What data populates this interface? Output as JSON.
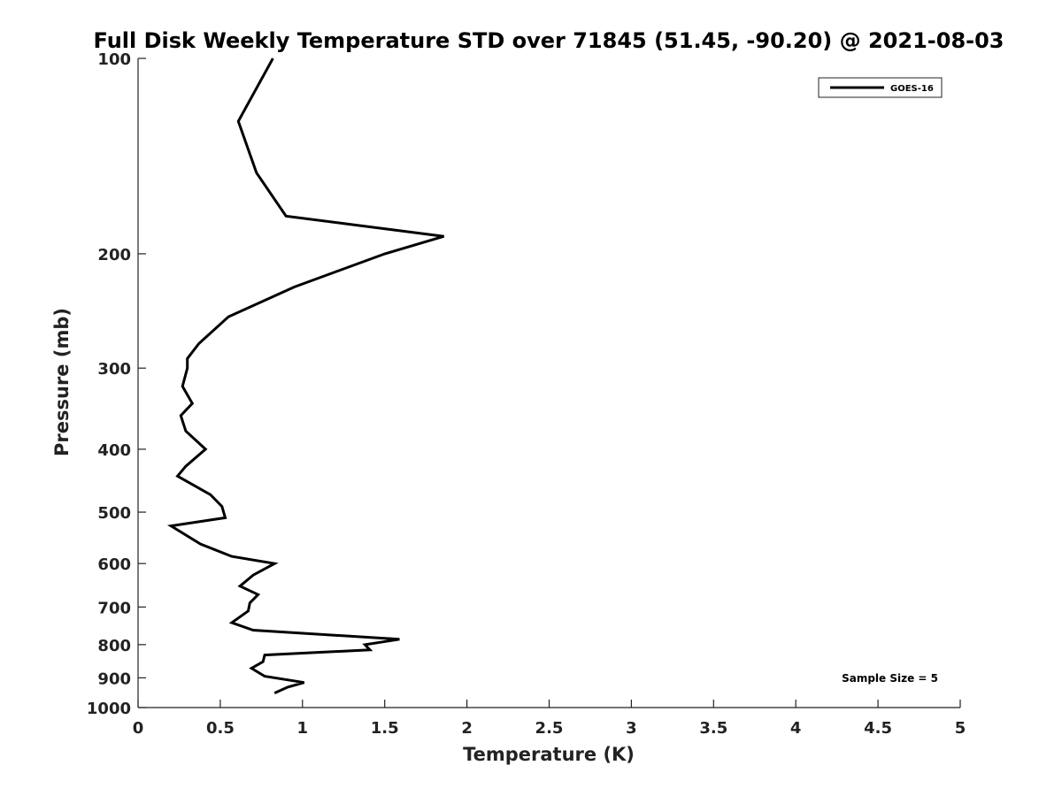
{
  "chart_data": {
    "type": "line",
    "title": "Full Disk Weekly Temperature STD over 71845 (51.45, -90.20) @ 2021-08-03",
    "xlabel": "Temperature (K)",
    "ylabel": "Pressure (mb)",
    "xlim": [
      0,
      5
    ],
    "ylim": [
      100,
      1000
    ],
    "y_scale": "log",
    "y_reversed": true,
    "x_ticks": [
      "0",
      "0.5",
      "1",
      "1.5",
      "2",
      "2.5",
      "3",
      "3.5",
      "4",
      "4.5",
      "5"
    ],
    "y_ticks": [
      "100",
      "200",
      "300",
      "400",
      "500",
      "600",
      "700",
      "800",
      "900",
      "1000"
    ],
    "grid": false,
    "legend": {
      "position": "top-right",
      "entries": [
        "GOES-16"
      ]
    },
    "annotation": "Sample Size = 5",
    "line_color": "#000000",
    "series": [
      {
        "name": "GOES-16",
        "points": [
          {
            "x": 0.82,
            "y": 100
          },
          {
            "x": 0.61,
            "y": 125
          },
          {
            "x": 0.72,
            "y": 150
          },
          {
            "x": 0.9,
            "y": 175
          },
          {
            "x": 1.86,
            "y": 188
          },
          {
            "x": 1.5,
            "y": 200
          },
          {
            "x": 0.95,
            "y": 225
          },
          {
            "x": 0.55,
            "y": 250
          },
          {
            "x": 0.37,
            "y": 275
          },
          {
            "x": 0.3,
            "y": 290
          },
          {
            "x": 0.3,
            "y": 300
          },
          {
            "x": 0.27,
            "y": 320
          },
          {
            "x": 0.33,
            "y": 340
          },
          {
            "x": 0.26,
            "y": 355
          },
          {
            "x": 0.29,
            "y": 375
          },
          {
            "x": 0.41,
            "y": 400
          },
          {
            "x": 0.29,
            "y": 425
          },
          {
            "x": 0.24,
            "y": 440
          },
          {
            "x": 0.44,
            "y": 470
          },
          {
            "x": 0.51,
            "y": 490
          },
          {
            "x": 0.53,
            "y": 510
          },
          {
            "x": 0.2,
            "y": 525
          },
          {
            "x": 0.38,
            "y": 560
          },
          {
            "x": 0.57,
            "y": 585
          },
          {
            "x": 0.83,
            "y": 600
          },
          {
            "x": 0.7,
            "y": 625
          },
          {
            "x": 0.62,
            "y": 650
          },
          {
            "x": 0.73,
            "y": 670
          },
          {
            "x": 0.68,
            "y": 690
          },
          {
            "x": 0.67,
            "y": 710
          },
          {
            "x": 0.57,
            "y": 740
          },
          {
            "x": 0.7,
            "y": 760
          },
          {
            "x": 1.59,
            "y": 785
          },
          {
            "x": 1.38,
            "y": 800
          },
          {
            "x": 1.41,
            "y": 815
          },
          {
            "x": 0.77,
            "y": 830
          },
          {
            "x": 0.76,
            "y": 850
          },
          {
            "x": 0.69,
            "y": 870
          },
          {
            "x": 0.77,
            "y": 895
          },
          {
            "x": 1.01,
            "y": 915
          },
          {
            "x": 0.91,
            "y": 930
          },
          {
            "x": 0.83,
            "y": 950
          }
        ]
      }
    ]
  }
}
